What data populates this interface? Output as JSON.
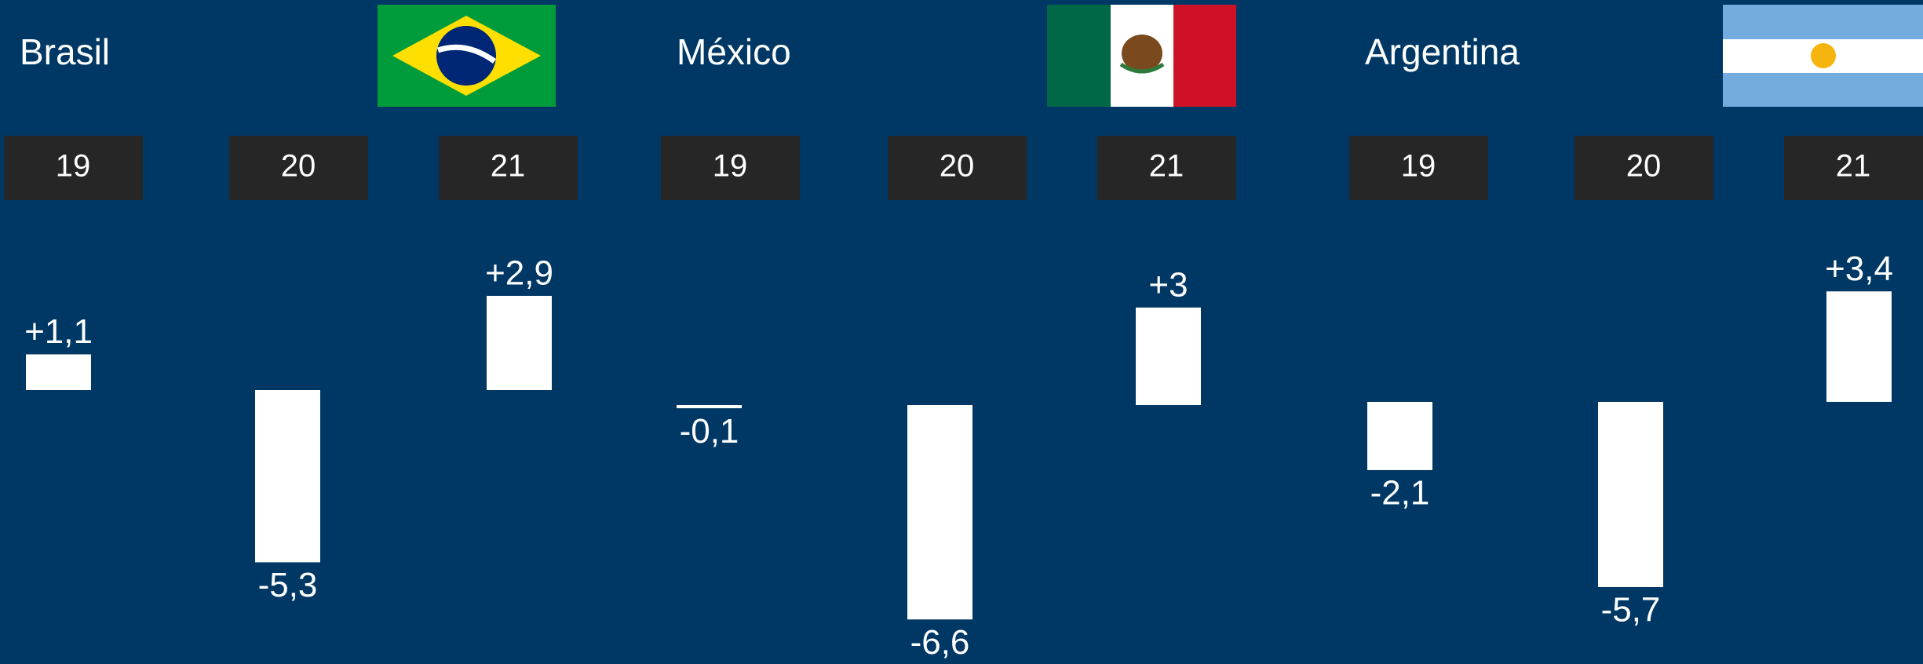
{
  "chart_data": [
    {
      "type": "bar",
      "title": "Brasil",
      "categories": [
        "19",
        "20",
        "21"
      ],
      "values": [
        1.1,
        -5.3,
        2.9
      ],
      "value_labels": [
        "+1,1",
        "-5,3",
        "+2,9"
      ],
      "color": "#ffffff"
    },
    {
      "type": "bar",
      "title": "México",
      "categories": [
        "19",
        "20",
        "21"
      ],
      "values": [
        -0.1,
        -6.6,
        3
      ],
      "value_labels": [
        "-0,1",
        "-6,6",
        "+3"
      ],
      "color": "#ffffff"
    },
    {
      "type": "bar",
      "title": "Argentina",
      "categories": [
        "19",
        "20",
        "21"
      ],
      "values": [
        -2.1,
        -5.7,
        3.4
      ],
      "value_labels": [
        "-2,1",
        "-5,7",
        "+3,4"
      ],
      "color": "#ffffff"
    }
  ]
}
